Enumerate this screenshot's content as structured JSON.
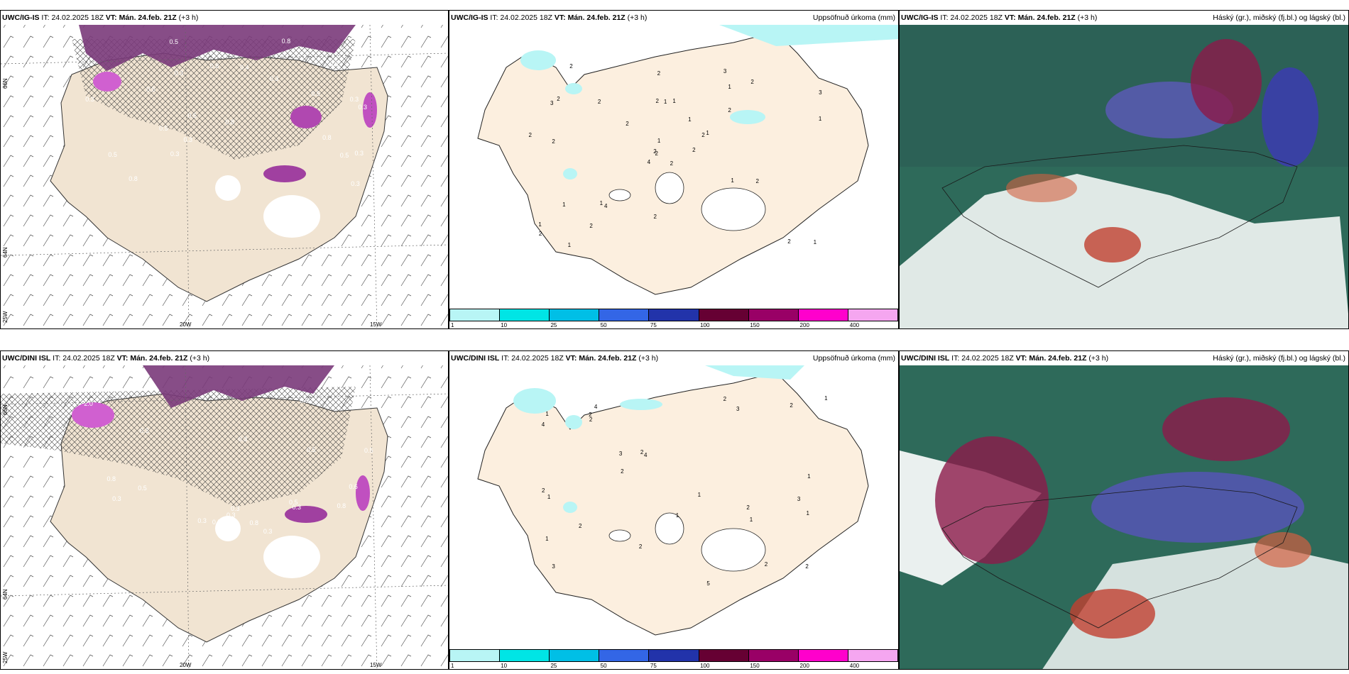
{
  "rows": [
    {
      "model": "UWC/IG-IS",
      "it_label": "IT:",
      "it_value": "24.02.2025 18Z",
      "vt_label": "VT:",
      "vt_value": "Mán. 24.feb. 21Z",
      "lead": "(+3 h)"
    },
    {
      "model": "UWC/DINI ISL",
      "it_label": "IT:",
      "it_value": "24.02.2025 18Z",
      "vt_label": "VT:",
      "vt_value": "Mán. 24.feb. 21Z",
      "lead": "(+3 h)"
    }
  ],
  "precip_title": "Uppsöfnuð úrkoma (mm)",
  "cloud_title": "Háský (gr.), miðský (fj.bl.) og lágský (bl.)",
  "axes": {
    "lat_66": "66N",
    "lat_64": "64N",
    "lon_25": "25W",
    "lon_20": "20W",
    "lon_15": "15W"
  },
  "colorbar": {
    "labels": [
      "1",
      "10",
      "25",
      "50",
      "75",
      "100",
      "150",
      "200",
      "400"
    ],
    "colors": [
      "#b8f5f5",
      "#00e5e5",
      "#00bfe6",
      "#3366e6",
      "#2233aa",
      "#660033",
      "#990066",
      "#ff00cc",
      "#f5a6f0"
    ]
  },
  "precip_labels_top": [
    "2",
    "3",
    "2",
    "1",
    "2",
    "4",
    "3",
    "1",
    "1",
    "2",
    "2",
    "1",
    "2",
    "3",
    "4",
    "2",
    "1",
    "2",
    "1",
    "1",
    "2",
    "2",
    "2",
    "1",
    "1",
    "2",
    "2",
    "2",
    "2",
    "1",
    "1",
    "2",
    "2",
    "1",
    "2",
    "2",
    "1",
    "2"
  ],
  "precip_labels_bottom": [
    "2",
    "3",
    "3",
    "4",
    "4",
    "2",
    "1",
    "3",
    "3",
    "5",
    "4",
    "2",
    "1",
    "2",
    "2",
    "1",
    "1",
    "1",
    "2",
    "2",
    "1",
    "2",
    "2",
    "1",
    "2",
    "2",
    "1",
    "1",
    "2"
  ],
  "ice_labels_top": [
    "0.3",
    "0.3",
    "0.3",
    "0.3",
    "0.5",
    "0.3",
    "0.3",
    "0.8",
    "0.5",
    "0.3",
    "0.5",
    "0.8",
    "0.5",
    "0.3",
    "0.5",
    "0.8",
    "0.5",
    "0.3",
    "0.5",
    "0.8",
    "0.3",
    "0.4",
    "0.8"
  ],
  "ice_labels_bottom": [
    "0.3",
    "0.3",
    "0.3",
    "2.0",
    "0.5",
    "0.3",
    "0.3",
    "0.8",
    "0.5",
    "0.3",
    "0.5",
    "0.8",
    "0.5",
    "0.3",
    "0.5",
    "0.8",
    "0.5",
    "0.3",
    "0.6"
  ]
}
